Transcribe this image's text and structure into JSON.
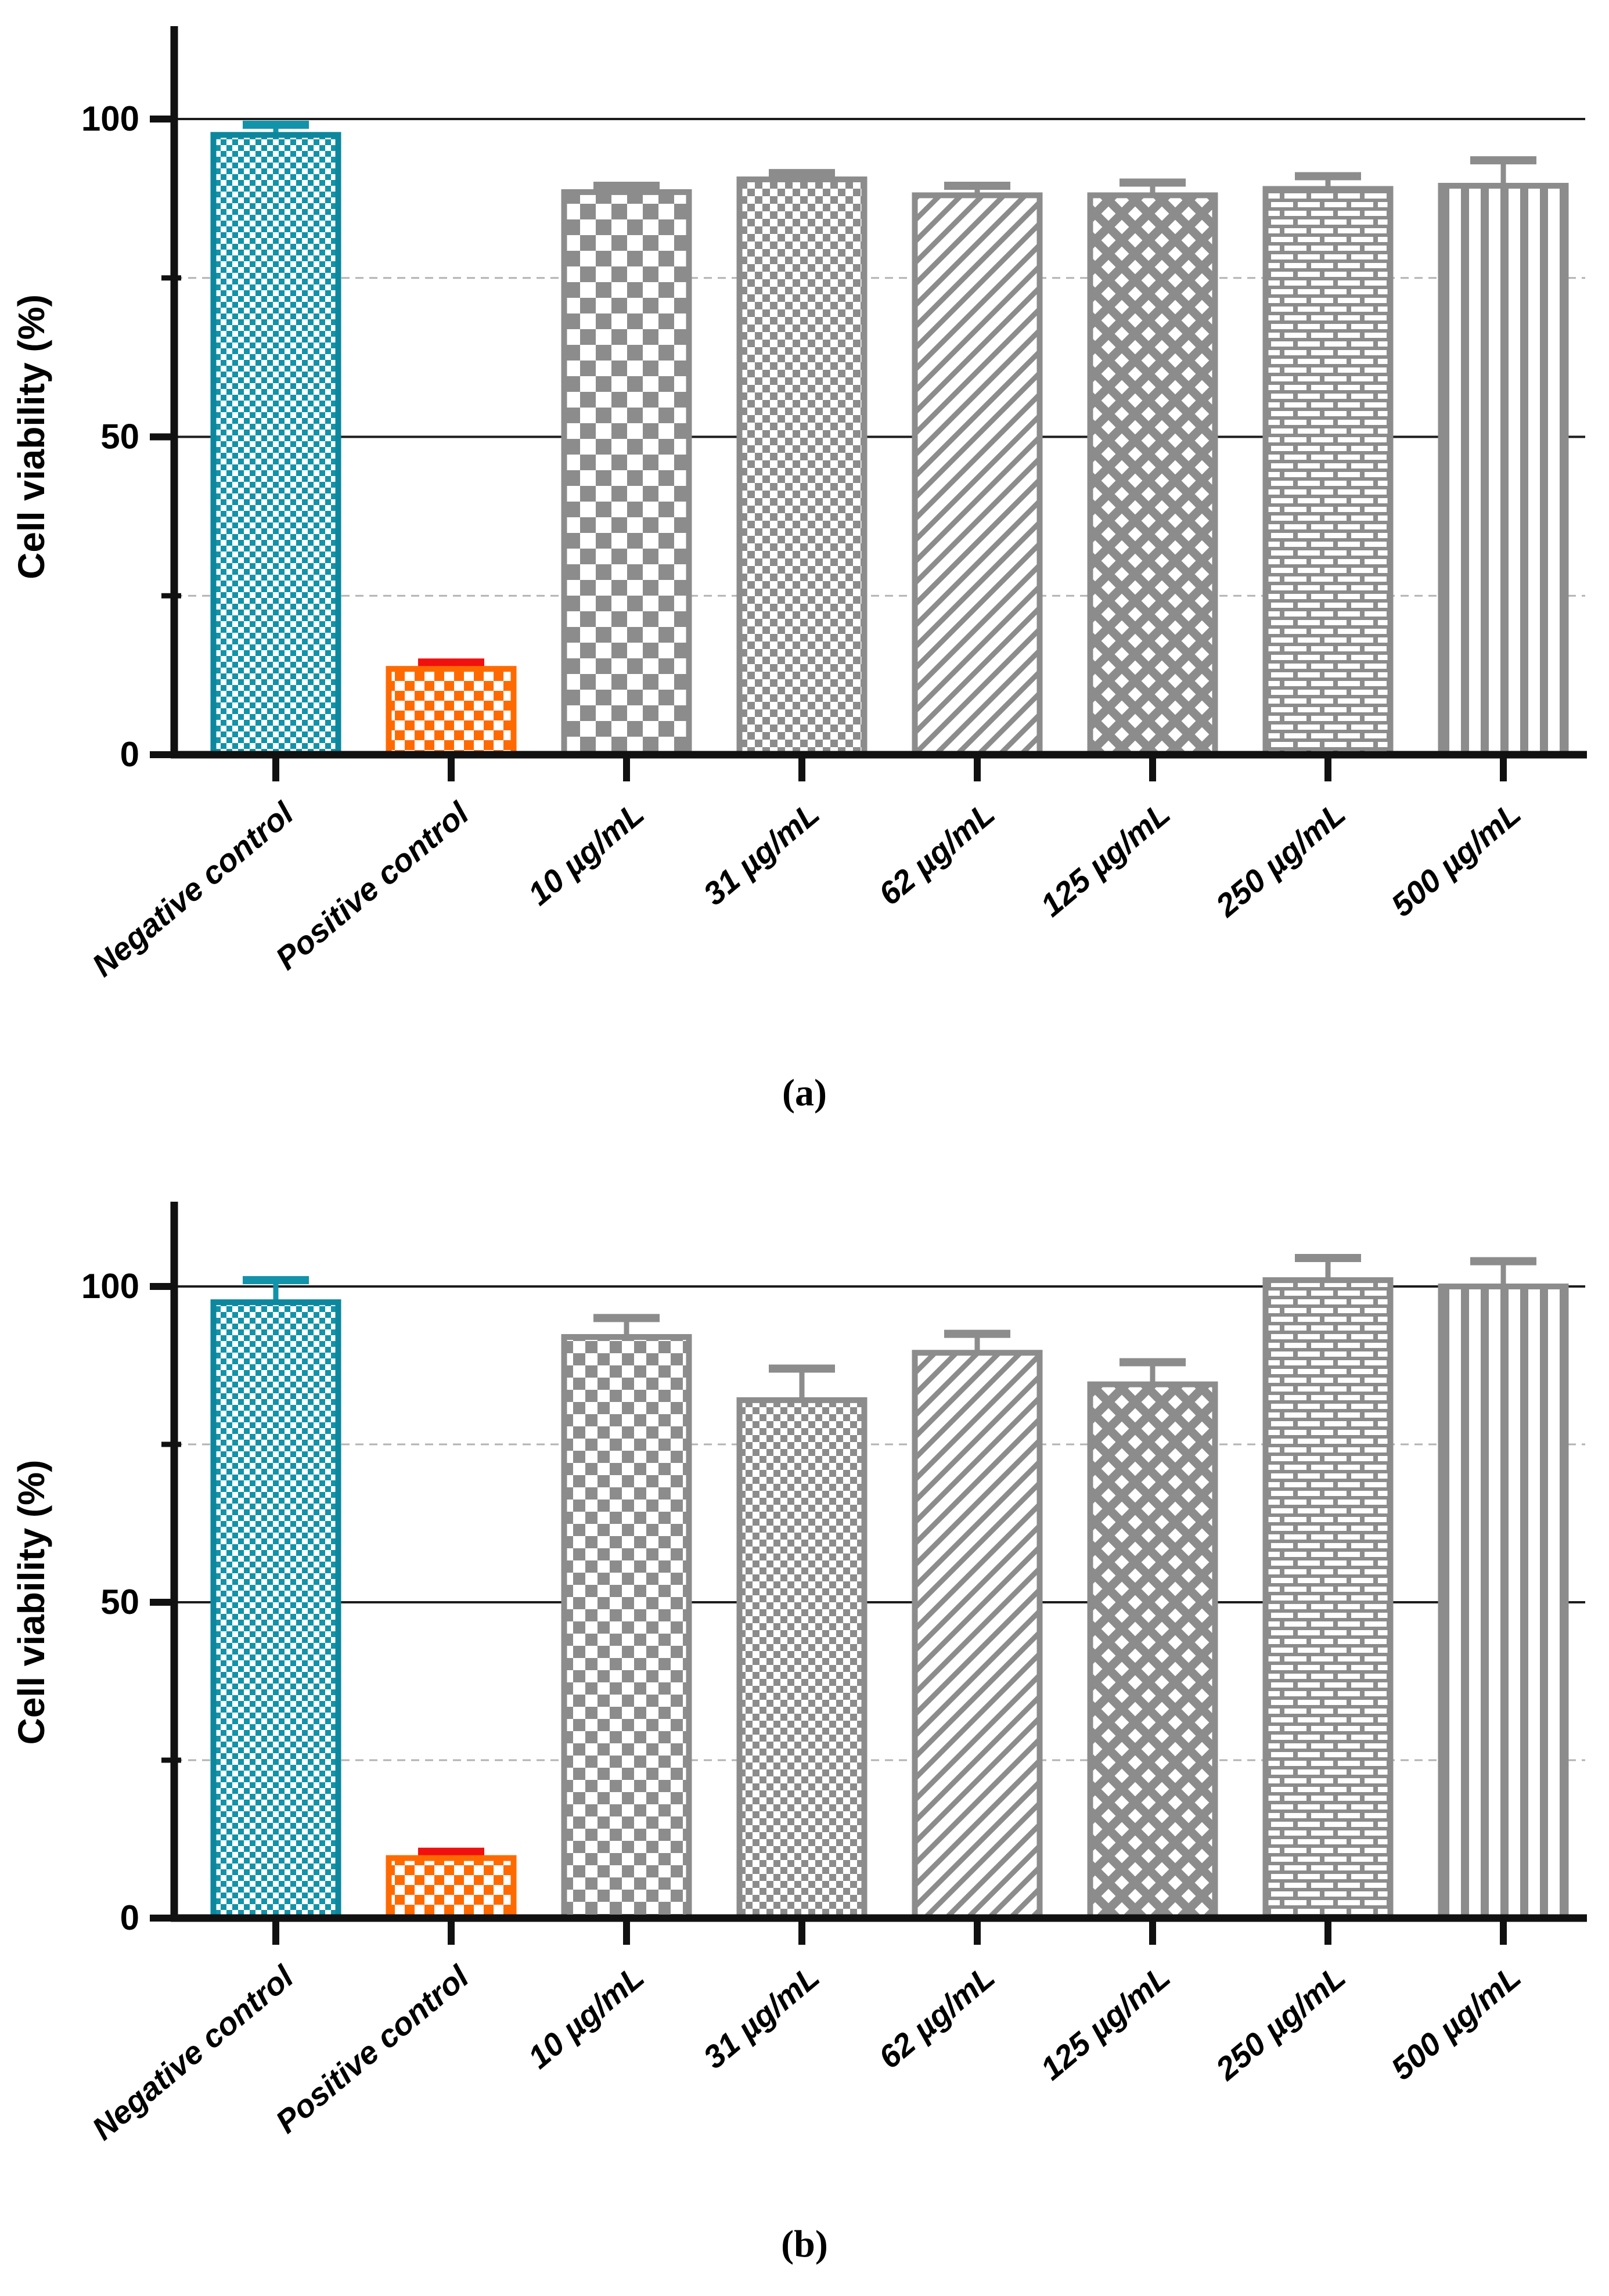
{
  "chart_data": [
    {
      "id": "a",
      "type": "bar",
      "title": "",
      "caption": "(a)",
      "ylabel": "Cell viability (%)",
      "xlabel": "",
      "ylim": [
        0,
        114
      ],
      "yticks_major": [
        0,
        50,
        100
      ],
      "ytick_labels": [
        "0",
        "50",
        "100"
      ],
      "yticks_minor_dashed": [
        25,
        75
      ],
      "gridlines_solid": [
        50,
        100
      ],
      "legend": "none",
      "categories": [
        "Negative control",
        "Positive control",
        "10 µg/mL",
        "31 µg/mL",
        "62 µg/mL",
        "125 µg/mL",
        "250 µg/mL",
        "500 µg/mL"
      ],
      "values": [
        97.5,
        13.5,
        88.5,
        90.5,
        88,
        88,
        89,
        89.5
      ],
      "errors": [
        1.6,
        1,
        1,
        1,
        1.5,
        2,
        2,
        4
      ],
      "bar_styles": [
        {
          "pattern": "checker",
          "size": 10,
          "color": "#1293a9",
          "edge_color": "#0d879d",
          "error_color": "#1293a9"
        },
        {
          "pattern": "checker",
          "size": 17,
          "color": "#ff6a00",
          "edge_color": "#ff6a00",
          "error_color": "#f01010"
        },
        {
          "pattern": "checker",
          "size": 27,
          "color": "#8c8c8c",
          "edge_color": "#8c8c8c",
          "error_color": "#8c8c8c"
        },
        {
          "pattern": "checker",
          "size": 13,
          "color": "#8c8c8c",
          "edge_color": "#8c8c8c",
          "error_color": "#8c8c8c"
        },
        {
          "pattern": "diagonal",
          "size": 26,
          "color": "#8c8c8c",
          "edge_color": "#8c8c8c",
          "error_color": "#8c8c8c"
        },
        {
          "pattern": "diamond",
          "size": 46,
          "color": "#8c8c8c",
          "edge_color": "#8c8c8c",
          "error_color": "#8c8c8c"
        },
        {
          "pattern": "brick",
          "size": 30,
          "color": "#8c8c8c",
          "edge_color": "#8c8c8c",
          "error_color": "#8c8c8c"
        },
        {
          "pattern": "vstripes",
          "size": 34,
          "color": "#8c8c8c",
          "edge_color": "#8c8c8c",
          "error_color": "#8c8c8c"
        }
      ]
    },
    {
      "id": "b",
      "type": "bar",
      "title": "",
      "caption": "(b)",
      "ylabel": "Cell viability (%)",
      "xlabel": "",
      "ylim": [
        0,
        114
      ],
      "yticks_major": [
        0,
        50,
        100
      ],
      "ytick_labels": [
        "0",
        "50",
        "100"
      ],
      "yticks_minor_dashed": [
        25,
        75
      ],
      "gridlines_solid": [
        50,
        100
      ],
      "legend": "none",
      "categories": [
        "Negative control",
        "Positive control",
        "10 µg/mL",
        "31 µg/mL",
        "62 µg/mL",
        "125 µg/mL",
        "250 µg/mL",
        "500 µg/mL"
      ],
      "values": [
        97.5,
        9.5,
        92,
        82,
        89.5,
        84.5,
        101,
        100
      ],
      "errors": [
        3.5,
        1,
        3,
        5,
        3,
        3.5,
        3.5,
        4
      ],
      "bar_styles": [
        {
          "pattern": "checker",
          "size": 10,
          "color": "#1293a9",
          "edge_color": "#0d879d",
          "error_color": "#1293a9"
        },
        {
          "pattern": "checker",
          "size": 17,
          "color": "#ff6a00",
          "edge_color": "#ff6a00",
          "error_color": "#f01010"
        },
        {
          "pattern": "checker",
          "size": 21,
          "color": "#8c8c8c",
          "edge_color": "#8c8c8c",
          "error_color": "#8c8c8c"
        },
        {
          "pattern": "checker",
          "size": 12,
          "color": "#8c8c8c",
          "edge_color": "#8c8c8c",
          "error_color": "#8c8c8c"
        },
        {
          "pattern": "diagonal",
          "size": 26,
          "color": "#8c8c8c",
          "edge_color": "#8c8c8c",
          "error_color": "#8c8c8c"
        },
        {
          "pattern": "diamond",
          "size": 46,
          "color": "#8c8c8c",
          "edge_color": "#8c8c8c",
          "error_color": "#8c8c8c"
        },
        {
          "pattern": "brick",
          "size": 30,
          "color": "#8c8c8c",
          "edge_color": "#8c8c8c",
          "error_color": "#8c8c8c"
        },
        {
          "pattern": "vstripes",
          "size": 34,
          "color": "#8c8c8c",
          "edge_color": "#8c8c8c",
          "error_color": "#8c8c8c"
        }
      ]
    }
  ],
  "colors": {
    "teal": "#1293a9",
    "orange": "#ff6a00",
    "error_red": "#f01010",
    "gray": "#8c8c8c",
    "axis": "#111111",
    "solid_grid": "#1c1c1c",
    "dashed_grid": "#b3b3b3",
    "background": "#ffffff"
  }
}
